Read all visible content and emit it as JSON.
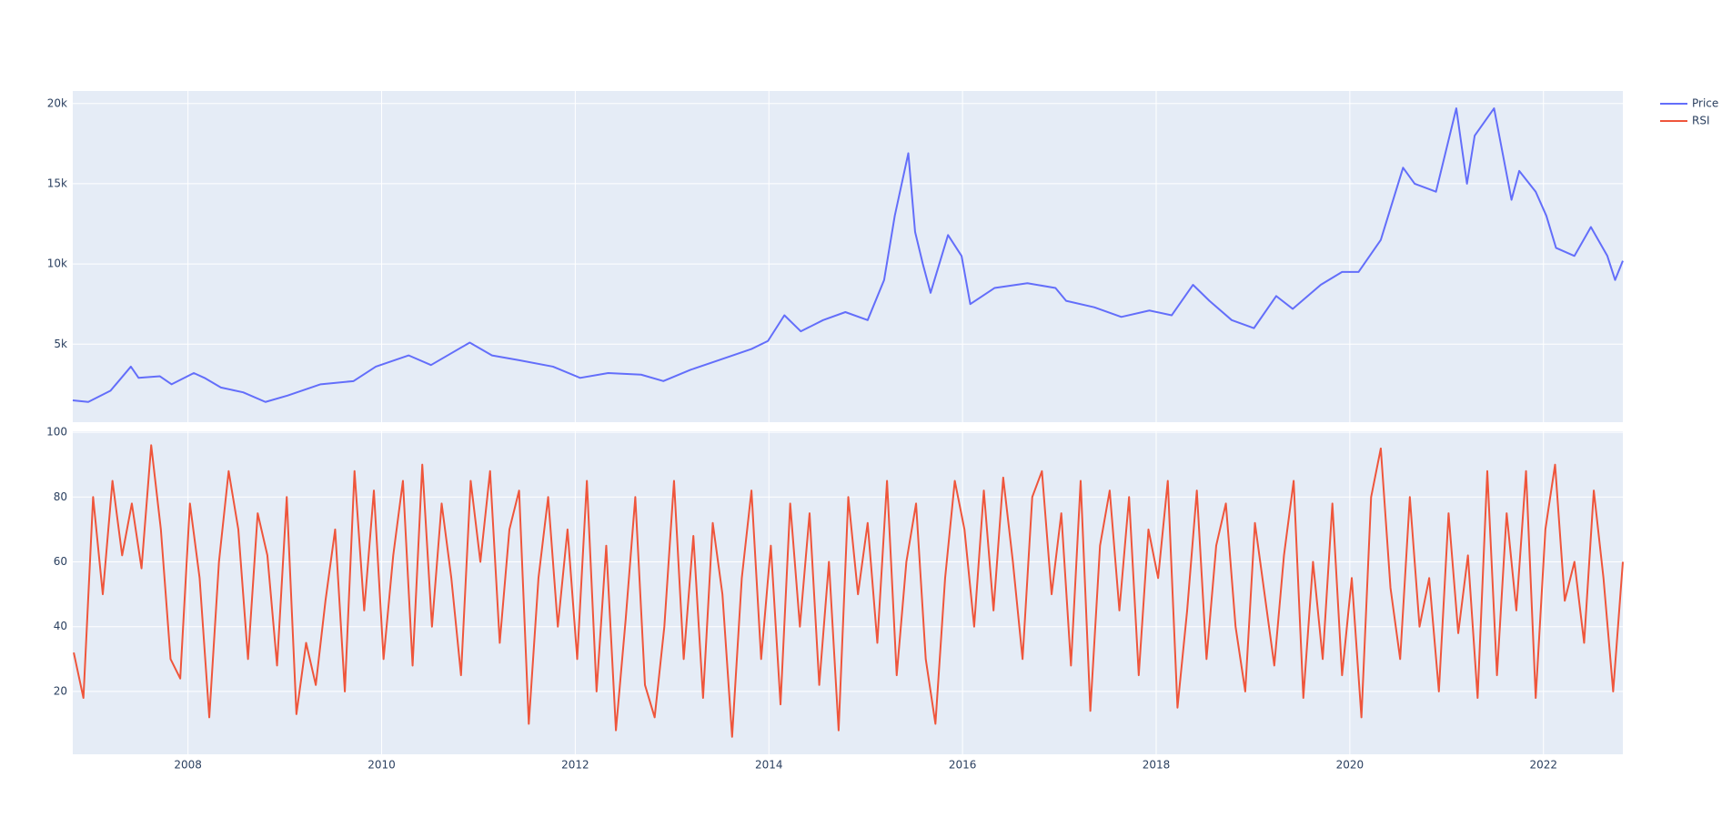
{
  "chart_data": [
    {
      "type": "line",
      "xlim": [
        2006.81,
        2022.82
      ],
      "ylim": [
        138,
        20780
      ],
      "yticks": [
        {
          "value": 5000,
          "label": "5k"
        },
        {
          "value": 10000,
          "label": "10k"
        },
        {
          "value": 15000,
          "label": "15k"
        },
        {
          "value": 20000,
          "label": "20k"
        }
      ],
      "grid": true,
      "legend": "top-right",
      "x": [
        2006.81,
        2006.97,
        2007.2,
        2007.41,
        2007.49,
        2007.71,
        2007.83,
        2008.06,
        2008.17,
        2008.34,
        2008.57,
        2008.8,
        2009.03,
        2009.37,
        2009.71,
        2009.94,
        2010.28,
        2010.51,
        2010.91,
        2011.14,
        2011.42,
        2011.77,
        2012.05,
        2012.34,
        2012.68,
        2012.91,
        2013.19,
        2013.48,
        2013.82,
        2013.99,
        2014.16,
        2014.33,
        2014.56,
        2014.79,
        2015.02,
        2015.19,
        2015.3,
        2015.44,
        2015.51,
        2015.59,
        2015.67,
        2015.85,
        2015.99,
        2016.08,
        2016.33,
        2016.67,
        2016.96,
        2017.07,
        2017.36,
        2017.64,
        2017.93,
        2018.16,
        2018.38,
        2018.55,
        2018.78,
        2019.01,
        2019.24,
        2019.41,
        2019.7,
        2019.92,
        2020.09,
        2020.32,
        2020.55,
        2020.67,
        2020.89,
        2021.1,
        2021.21,
        2021.29,
        2021.49,
        2021.67,
        2021.75,
        2021.92,
        2022.03,
        2022.13,
        2022.32,
        2022.49,
        2022.66,
        2022.74,
        2022.82
      ],
      "series": [
        {
          "name": "Price",
          "color": "#636efa",
          "values": [
            1500,
            1400,
            2100,
            3600,
            2900,
            3000,
            2500,
            3200,
            2900,
            2300,
            2000,
            1400,
            1800,
            2500,
            2700,
            3600,
            4300,
            3700,
            5100,
            4300,
            4000,
            3600,
            2900,
            3200,
            3100,
            2700,
            3400,
            4000,
            4700,
            5200,
            6800,
            5800,
            6500,
            7000,
            6500,
            9000,
            13000,
            16900,
            12000,
            10000,
            8200,
            11800,
            10500,
            7500,
            8500,
            8800,
            8500,
            7700,
            7300,
            6700,
            7100,
            6800,
            8700,
            7700,
            6500,
            6000,
            8000,
            7200,
            8700,
            9500,
            9500,
            11500,
            16000,
            15000,
            14500,
            19700,
            15000,
            18000,
            19700,
            14000,
            15800,
            14500,
            13000,
            11000,
            10500,
            12300,
            10500,
            9000,
            10200
          ]
        }
      ]
    },
    {
      "type": "line",
      "xlim": [
        2006.81,
        2022.82
      ],
      "xticks": [
        2008,
        2010,
        2012,
        2014,
        2016,
        2018,
        2020,
        2022
      ],
      "ylim": [
        0.6,
        100.3
      ],
      "yticks": [
        20,
        40,
        60,
        80,
        100
      ],
      "grid": true,
      "legend": "top-right",
      "x": [
        2006.82,
        2006.92,
        2007.02,
        2007.12,
        2007.22,
        2007.32,
        2007.42,
        2007.52,
        2007.62,
        2007.72,
        2007.82,
        2007.92,
        2008.02,
        2008.12,
        2008.22,
        2008.32,
        2008.42,
        2008.52,
        2008.62,
        2008.72,
        2008.82,
        2008.92,
        2009.02,
        2009.12,
        2009.22,
        2009.32,
        2009.42,
        2009.52,
        2009.62,
        2009.72,
        2009.82,
        2009.92,
        2010.02,
        2010.12,
        2010.22,
        2010.32,
        2010.42,
        2010.52,
        2010.62,
        2010.72,
        2010.82,
        2010.92,
        2011.02,
        2011.12,
        2011.22,
        2011.32,
        2011.42,
        2011.52,
        2011.62,
        2011.72,
        2011.82,
        2011.92,
        2012.02,
        2012.12,
        2012.22,
        2012.32,
        2012.42,
        2012.52,
        2012.62,
        2012.72,
        2012.82,
        2012.92,
        2013.02,
        2013.12,
        2013.22,
        2013.32,
        2013.42,
        2013.52,
        2013.62,
        2013.72,
        2013.82,
        2013.92,
        2014.02,
        2014.12,
        2014.22,
        2014.32,
        2014.42,
        2014.52,
        2014.62,
        2014.72,
        2014.82,
        2014.92,
        2015.02,
        2015.12,
        2015.22,
        2015.32,
        2015.42,
        2015.52,
        2015.62,
        2015.72,
        2015.82,
        2015.92,
        2016.02,
        2016.12,
        2016.22,
        2016.32,
        2016.42,
        2016.52,
        2016.62,
        2016.72,
        2016.82,
        2016.92,
        2017.02,
        2017.12,
        2017.22,
        2017.32,
        2017.42,
        2017.52,
        2017.62,
        2017.72,
        2017.82,
        2017.92,
        2018.02,
        2018.12,
        2018.22,
        2018.32,
        2018.42,
        2018.52,
        2018.62,
        2018.72,
        2018.82,
        2018.92,
        2019.02,
        2019.12,
        2019.22,
        2019.32,
        2019.42,
        2019.52,
        2019.62,
        2019.72,
        2019.82,
        2019.92,
        2020.02,
        2020.12,
        2020.22,
        2020.32,
        2020.42,
        2020.52,
        2020.62,
        2020.72,
        2020.82,
        2020.92,
        2021.02,
        2021.12,
        2021.22,
        2021.32,
        2021.42,
        2021.52,
        2021.62,
        2021.72,
        2021.82,
        2021.92,
        2022.02,
        2022.12,
        2022.22,
        2022.32,
        2022.42,
        2022.52,
        2022.62,
        2022.72,
        2022.82
      ],
      "series": [
        {
          "name": "RSI",
          "color": "#ef553b",
          "values": [
            32,
            18,
            80,
            50,
            85,
            62,
            78,
            58,
            96,
            70,
            30,
            24,
            78,
            55,
            12,
            60,
            88,
            70,
            30,
            75,
            62,
            28,
            80,
            13,
            35,
            22,
            48,
            70,
            20,
            88,
            45,
            82,
            30,
            62,
            85,
            28,
            90,
            40,
            78,
            55,
            25,
            85,
            60,
            88,
            35,
            70,
            82,
            10,
            55,
            80,
            40,
            70,
            30,
            85,
            20,
            65,
            8,
            42,
            80,
            22,
            12,
            40,
            85,
            30,
            68,
            18,
            72,
            50,
            6,
            55,
            82,
            30,
            65,
            16,
            78,
            40,
            75,
            22,
            60,
            8,
            80,
            50,
            72,
            35,
            85,
            25,
            60,
            78,
            30,
            10,
            55,
            85,
            70,
            40,
            82,
            45,
            86,
            60,
            30,
            80,
            88,
            50,
            75,
            28,
            85,
            14,
            65,
            82,
            45,
            80,
            25,
            70,
            55,
            85,
            15,
            45,
            82,
            30,
            65,
            78,
            40,
            20,
            72,
            50,
            28,
            62,
            85,
            18,
            60,
            30,
            78,
            25,
            55,
            12,
            80,
            95,
            52,
            30,
            80,
            40,
            55,
            20,
            75,
            38,
            62,
            18,
            88,
            25,
            75,
            45,
            88,
            18,
            70,
            90,
            48,
            60,
            35,
            82,
            55,
            20,
            60
          ]
        }
      ]
    }
  ]
}
